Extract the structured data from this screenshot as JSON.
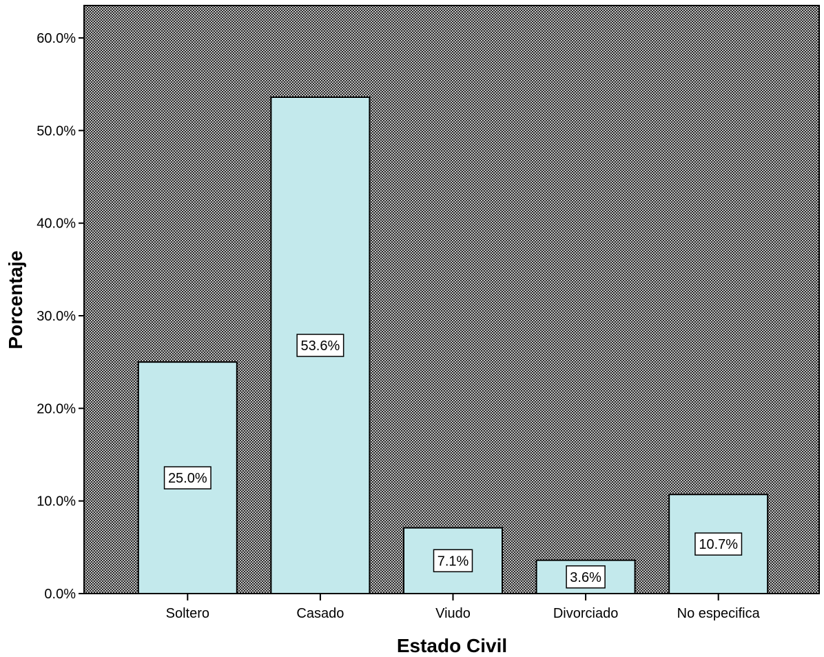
{
  "chart_data": {
    "type": "bar",
    "title": "",
    "xlabel": "Estado Civil",
    "ylabel": "Porcentaje",
    "categories": [
      "Soltero",
      "Casado",
      "Viudo",
      "Divorciado",
      "No especifica"
    ],
    "values": [
      25.0,
      53.6,
      7.1,
      3.6,
      10.7
    ],
    "data_labels": [
      "25.0%",
      "53.6%",
      "7.1%",
      "3.6%",
      "10.7%"
    ],
    "ylim": [
      0,
      63.5
    ],
    "yticks": [
      0,
      10,
      20,
      30,
      40,
      50,
      60
    ],
    "ytick_labels": [
      "0.0%",
      "10.0%",
      "20.0%",
      "30.0%",
      "40.0%",
      "50.0%",
      "60.0%"
    ],
    "grid": false,
    "legend": "none",
    "colors": {
      "bar_fill": "#c3e9ec",
      "bar_stroke": "#000000",
      "plot_background": "#2b2b2b",
      "plot_pattern": "#bfbfbf",
      "label_box": "#ffffff"
    }
  }
}
